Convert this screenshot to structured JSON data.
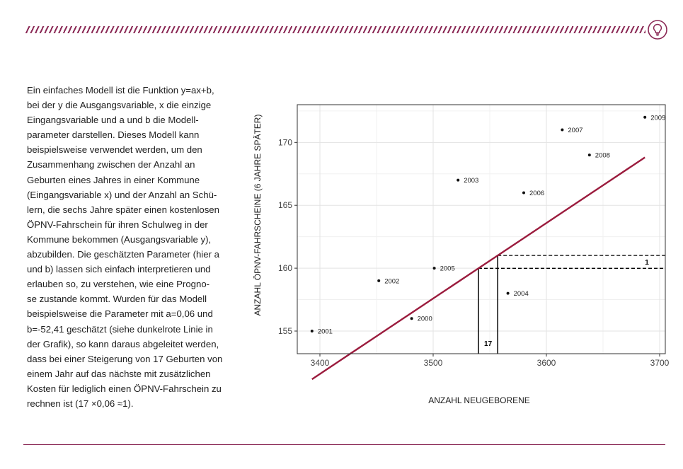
{
  "colors": {
    "accent": "#8b2a56",
    "regression_line": "#9b1b3d"
  },
  "header": {
    "icon": "lightbulb-icon"
  },
  "body_lines": [
    "Ein einfaches Modell ist die Funktion y=ax+b,",
    "bei der y die Ausgangsvariable, x die einzige",
    "Eingangsvariable und a und b die Modell-",
    "parameter darstellen. Dieses Modell kann",
    "beispielsweise verwendet werden, um den",
    "Zusammenhang zwischen der Anzahl an",
    "Geburten eines Jahres in einer Kommune",
    "(Eingangsvariable x) und der Anzahl an Schü-",
    "lern, die sechs Jahre später einen kostenlosen",
    "ÖPNV-Fahrschein für ihren Schulweg in der",
    "Kommune bekommen (Ausgangsvariable y),",
    "abzubilden. Die geschätzten Parameter (hier a",
    "und b) lassen sich einfach interpretieren und",
    "erlauben so, zu verstehen, wie eine Progno-",
    "se zustande kommt. Wurden für das Modell",
    "beispielsweise die Parameter mit a=0,06 und",
    "b=-52,41 geschätzt (siehe dunkelrote Linie in",
    "der Grafik), so kann daraus abgeleitet werden,",
    "dass bei einer Steigerung von 17 Geburten von",
    "einem Jahr auf das nächste mit zusätzlichen",
    "Kosten für lediglich einen ÖPNV-Fahrschein zu",
    "rechnen ist (17 ×0,06 ≈1)."
  ],
  "chart_data": {
    "type": "scatter",
    "xlabel": "ANZAHL NEUGEBORENE",
    "ylabel": "ANZAHL ÖPNV-FAHRSCHEINE (6 JAHRE SPÄTER)",
    "xlim": [
      3380,
      3705
    ],
    "ylim": [
      153.2,
      173.0
    ],
    "x_ticks": [
      3400,
      3500,
      3600,
      3700
    ],
    "y_ticks": [
      155,
      160,
      165,
      170
    ],
    "x_tick_labels": [
      "3400",
      "3500",
      "3600",
      "3700"
    ],
    "y_tick_labels": [
      "155",
      "160",
      "165",
      "170"
    ],
    "grid": true,
    "legend": "none",
    "points": [
      {
        "label": "2000",
        "x": 3481,
        "y": 156
      },
      {
        "label": "2001",
        "x": 3393,
        "y": 155
      },
      {
        "label": "2002",
        "x": 3452,
        "y": 159
      },
      {
        "label": "2003",
        "x": 3522,
        "y": 167
      },
      {
        "label": "2004",
        "x": 3566,
        "y": 158
      },
      {
        "label": "2005",
        "x": 3501,
        "y": 160
      },
      {
        "label": "2006",
        "x": 3580,
        "y": 166
      },
      {
        "label": "2007",
        "x": 3614,
        "y": 171
      },
      {
        "label": "2008",
        "x": 3638,
        "y": 169
      },
      {
        "label": "2009",
        "x": 3687,
        "y": 172
      }
    ],
    "regression_line": {
      "a": 0.06,
      "b": -52.41,
      "x_start": 3393,
      "x_end": 3687
    },
    "annotation": {
      "x1": 3540,
      "x2": 3557,
      "delta_x_label": "17",
      "delta_y_label": "1"
    }
  }
}
